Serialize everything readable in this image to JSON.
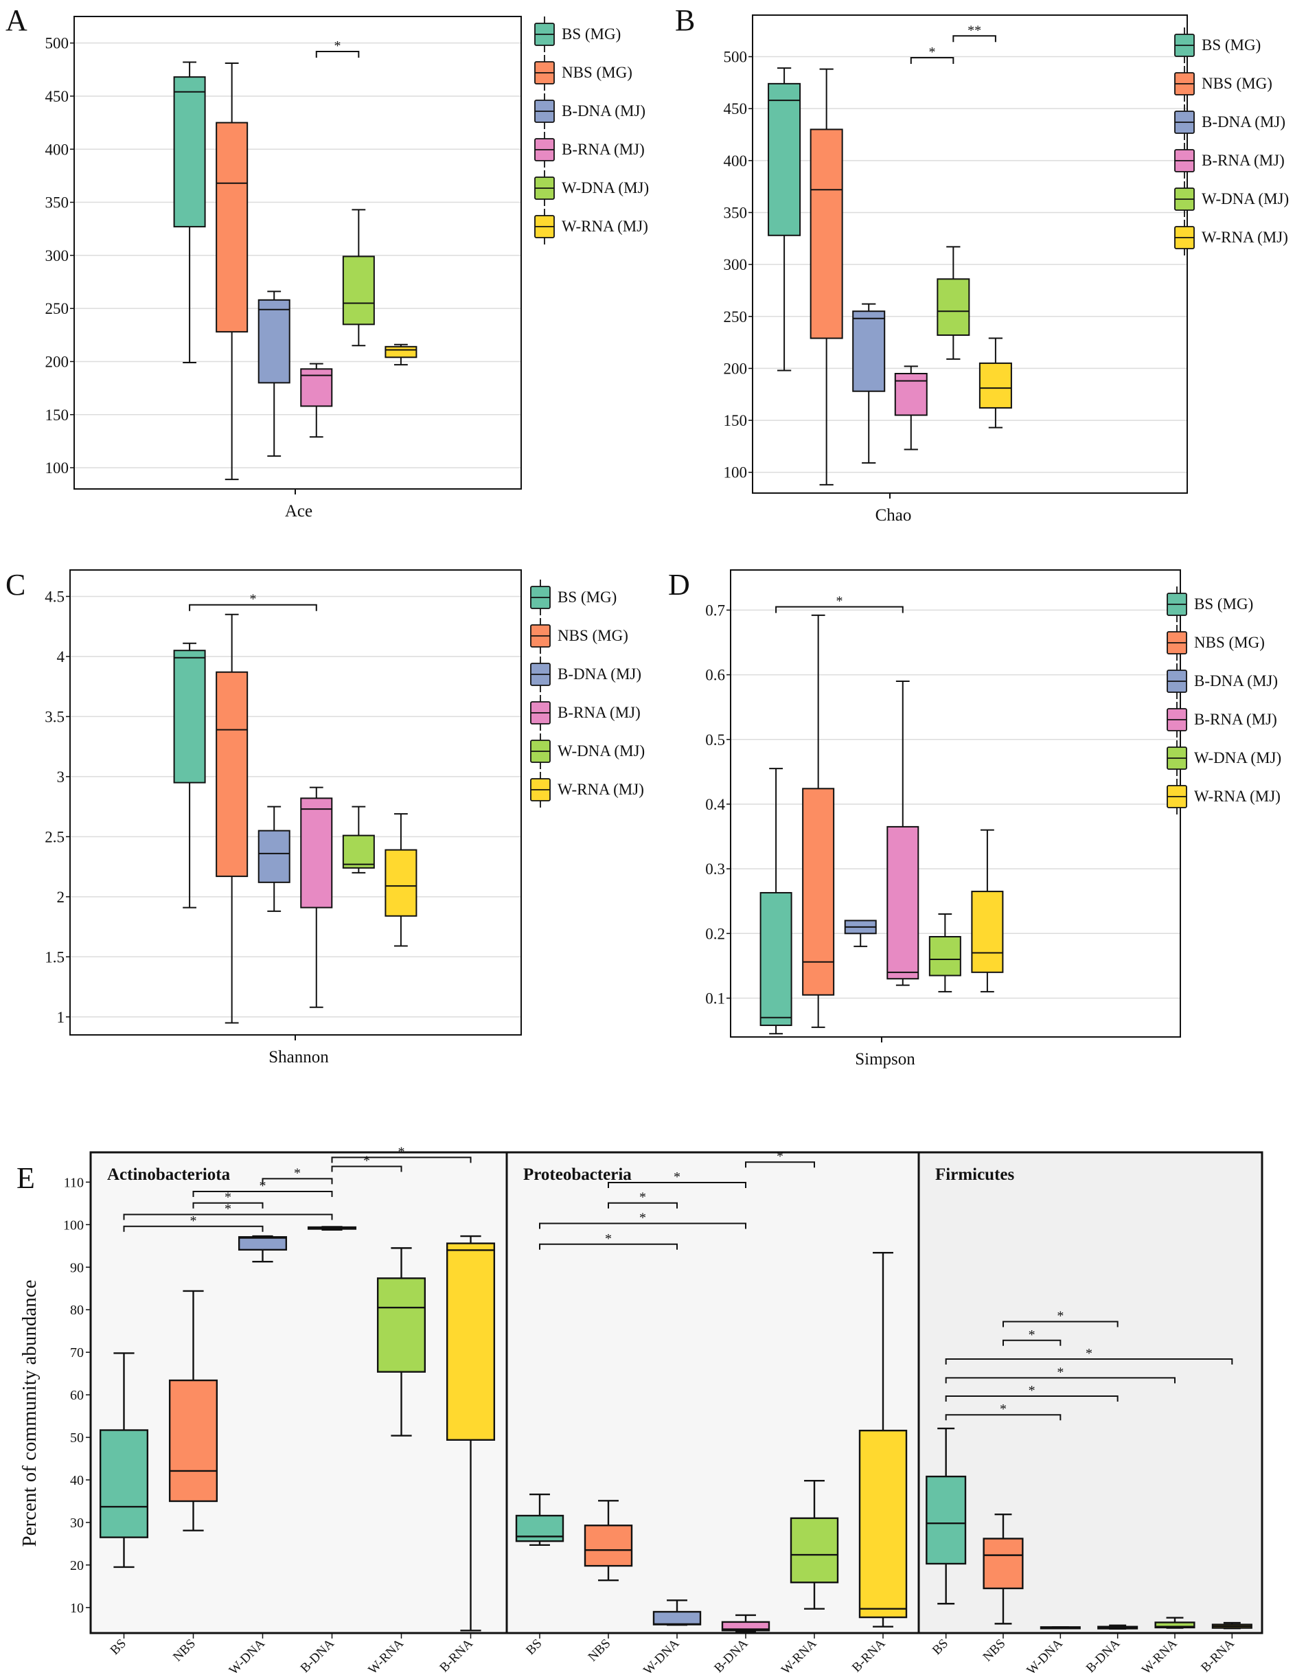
{
  "groups": [
    {
      "key": "BS",
      "legend": "BS (MG)",
      "color": "#66c2a5"
    },
    {
      "key": "NBS",
      "legend": "NBS (MG)",
      "color": "#fc8d62"
    },
    {
      "key": "B-DNA",
      "legend": "B-DNA (MJ)",
      "color": "#8da0cb"
    },
    {
      "key": "B-RNA",
      "legend": "B-RNA (MJ)",
      "color": "#e78ac3"
    },
    {
      "key": "W-DNA",
      "legend": "W-DNA (MJ)",
      "color": "#a6d854"
    },
    {
      "key": "W-RNA",
      "legend": "W-RNA (MJ)",
      "color": "#ffd92f"
    }
  ],
  "chart_data": [
    {
      "id": "A",
      "panel_label": "A",
      "type": "box",
      "xlabel": "Ace",
      "ylabel": "",
      "ylim": [
        80,
        525
      ],
      "yticks": [
        100,
        150,
        200,
        250,
        300,
        350,
        400,
        450,
        500
      ],
      "grid": true,
      "legend_position": "right",
      "boxes": [
        {
          "group": "BS (MG)",
          "min": 199,
          "q1": 327,
          "median": 454,
          "q3": 468,
          "max": 482
        },
        {
          "group": "NBS (MG)",
          "min": 89,
          "q1": 228,
          "median": 368,
          "q3": 425,
          "max": 481
        },
        {
          "group": "B-DNA (MJ)",
          "min": 111,
          "q1": 180,
          "median": 249,
          "q3": 258,
          "max": 266
        },
        {
          "group": "B-RNA (MJ)",
          "min": 129,
          "q1": 158,
          "median": 187,
          "q3": 193,
          "max": 198
        },
        {
          "group": "W-DNA (MJ)",
          "min": 215,
          "q1": 235,
          "median": 255,
          "q3": 299,
          "max": 343
        },
        {
          "group": "W-RNA (MJ)",
          "min": 197,
          "q1": 204,
          "median": 211,
          "q3": 214,
          "max": 216
        }
      ],
      "significance": [
        {
          "from": 3,
          "to": 4,
          "label": "*",
          "y": 492
        }
      ]
    },
    {
      "id": "B",
      "panel_label": "B",
      "type": "box",
      "xlabel": "Chao",
      "ylabel": "",
      "ylim": [
        80,
        540
      ],
      "yticks": [
        100,
        150,
        200,
        250,
        300,
        350,
        400,
        450,
        500
      ],
      "grid": true,
      "legend_position": "right",
      "boxes": [
        {
          "group": "BS (MG)",
          "min": 198,
          "q1": 328,
          "median": 458,
          "q3": 474,
          "max": 489
        },
        {
          "group": "NBS (MG)",
          "min": 88,
          "q1": 229,
          "median": 372,
          "q3": 430,
          "max": 488
        },
        {
          "group": "B-DNA (MJ)",
          "min": 109,
          "q1": 178,
          "median": 248,
          "q3": 255,
          "max": 262
        },
        {
          "group": "B-RNA (MJ)",
          "min": 122,
          "q1": 155,
          "median": 188,
          "q3": 195,
          "max": 202
        },
        {
          "group": "W-DNA (MJ)",
          "min": 209,
          "q1": 232,
          "median": 255,
          "q3": 286,
          "max": 317
        },
        {
          "group": "W-RNA (MJ)",
          "min": 143,
          "q1": 162,
          "median": 181,
          "q3": 205,
          "max": 229
        }
      ],
      "significance": [
        {
          "from": 3,
          "to": 4,
          "label": "*",
          "y": 499
        },
        {
          "from": 4,
          "to": 5,
          "label": "**",
          "y": 520
        }
      ]
    },
    {
      "id": "C",
      "panel_label": "C",
      "type": "box",
      "xlabel": "Shannon",
      "ylabel": "",
      "ylim": [
        0.85,
        4.72
      ],
      "yticks": [
        1,
        1.5,
        2,
        2.5,
        3,
        3.5,
        4,
        4.5
      ],
      "grid": true,
      "legend_position": "right",
      "boxes": [
        {
          "group": "BS (MG)",
          "min": 1.91,
          "q1": 2.95,
          "median": 3.99,
          "q3": 4.05,
          "max": 4.11
        },
        {
          "group": "NBS (MG)",
          "min": 0.95,
          "q1": 2.17,
          "median": 3.39,
          "q3": 3.87,
          "max": 4.35
        },
        {
          "group": "B-DNA (MJ)",
          "min": 1.88,
          "q1": 2.12,
          "median": 2.36,
          "q3": 2.55,
          "max": 2.75
        },
        {
          "group": "B-RNA (MJ)",
          "min": 1.08,
          "q1": 1.91,
          "median": 2.73,
          "q3": 2.82,
          "max": 2.91
        },
        {
          "group": "W-DNA (MJ)",
          "min": 2.2,
          "q1": 2.24,
          "median": 2.27,
          "q3": 2.51,
          "max": 2.75
        },
        {
          "group": "W-RNA (MJ)",
          "min": 1.59,
          "q1": 1.84,
          "median": 2.09,
          "q3": 2.39,
          "max": 2.69
        }
      ],
      "significance": [
        {
          "from": 0,
          "to": 3,
          "label": "*",
          "y": 4.43
        }
      ]
    },
    {
      "id": "D",
      "panel_label": "D",
      "type": "box",
      "xlabel": "Simpson",
      "ylabel": "",
      "ylim": [
        0.04,
        0.762
      ],
      "yticks": [
        0.1,
        0.2,
        0.3,
        0.4,
        0.5,
        0.6,
        0.7
      ],
      "grid": true,
      "legend_position": "right",
      "boxes": [
        {
          "group": "BS (MG)",
          "min": 0.045,
          "q1": 0.058,
          "median": 0.07,
          "q3": 0.263,
          "max": 0.455
        },
        {
          "group": "NBS (MG)",
          "min": 0.055,
          "q1": 0.105,
          "median": 0.156,
          "q3": 0.424,
          "max": 0.692
        },
        {
          "group": "B-DNA (MJ)",
          "min": 0.18,
          "q1": 0.2,
          "median": 0.21,
          "q3": 0.22,
          "max": 0.22
        },
        {
          "group": "B-RNA (MJ)",
          "min": 0.12,
          "q1": 0.13,
          "median": 0.14,
          "q3": 0.365,
          "max": 0.59
        },
        {
          "group": "W-DNA (MJ)",
          "min": 0.11,
          "q1": 0.135,
          "median": 0.16,
          "q3": 0.195,
          "max": 0.23
        },
        {
          "group": "W-RNA (MJ)",
          "min": 0.11,
          "q1": 0.14,
          "median": 0.17,
          "q3": 0.265,
          "max": 0.36
        }
      ],
      "significance": [
        {
          "from": 0,
          "to": 3,
          "label": "*",
          "y": 0.705
        }
      ]
    },
    {
      "id": "E",
      "panel_label": "E",
      "type": "box",
      "ylabel": "Percent of community abundance",
      "ylim": [
        4,
        117
      ],
      "yticks": [
        10,
        20,
        30,
        40,
        50,
        60,
        70,
        80,
        90,
        100,
        110
      ],
      "grid": false,
      "categories": [
        "BS",
        "NBS",
        "W-DNA",
        "B-DNA",
        "W-RNA",
        "B-RNA"
      ],
      "category_colors": [
        "#66c2a5",
        "#fc8d62",
        "#8da0cb",
        "#e78ac3",
        "#a6d854",
        "#ffd92f"
      ],
      "facets": [
        {
          "title": "Actinobacteriota",
          "background": "#f7f7f7",
          "boxes": [
            {
              "min": 19.5,
              "q1": 26.5,
              "median": 33.7,
              "q3": 51.7,
              "max": 69.8
            },
            {
              "min": 28.1,
              "q1": 35.0,
              "median": 42.1,
              "q3": 63.4,
              "max": 84.4
            },
            {
              "min": 91.3,
              "q1": 94.1,
              "median": 96.9,
              "q3": 97.1,
              "max": 97.3
            },
            {
              "min": 98.8,
              "q1": 99.0,
              "median": 99.2,
              "q3": 99.4,
              "max": 99.5
            },
            {
              "min": 50.4,
              "q1": 65.4,
              "median": 80.5,
              "q3": 87.4,
              "max": 94.5
            },
            {
              "min": 4.6,
              "q1": 49.4,
              "median": 94.0,
              "q3": 95.6,
              "max": 97.3
            }
          ],
          "significance": [
            {
              "from": 0,
              "to": 2,
              "label": "*",
              "y": 99.6
            },
            {
              "from": 0,
              "to": 3,
              "label": "*",
              "y": 102.4
            },
            {
              "from": 1,
              "to": 2,
              "label": "*",
              "y": 105.1
            },
            {
              "from": 1,
              "to": 3,
              "label": "*",
              "y": 107.8
            },
            {
              "from": 2,
              "to": 3,
              "label": "*",
              "y": 110.8
            },
            {
              "from": 3,
              "to": 4,
              "label": "*",
              "y": 113.7
            },
            {
              "from": 3,
              "to": 5,
              "label": "*",
              "y": 115.8
            }
          ]
        },
        {
          "title": "Proteobacteria",
          "background": "#f6f6f6",
          "boxes": [
            {
              "min": 24.7,
              "q1": 25.6,
              "median": 26.7,
              "q3": 31.6,
              "max": 36.6
            },
            {
              "min": 16.4,
              "q1": 19.8,
              "median": 23.5,
              "q3": 29.3,
              "max": 35.1
            },
            {
              "min": 5.9,
              "q1": 6.0,
              "median": 6.1,
              "q3": 9.0,
              "max": 11.7
            },
            {
              "min": 4.3,
              "q1": 4.6,
              "median": 4.9,
              "q3": 6.6,
              "max": 8.2
            },
            {
              "min": 9.7,
              "q1": 15.9,
              "median": 22.4,
              "q3": 31.0,
              "max": 39.8
            },
            {
              "min": 5.5,
              "q1": 7.7,
              "median": 9.7,
              "q3": 51.6,
              "max": 93.4
            }
          ],
          "significance": [
            {
              "from": 0,
              "to": 2,
              "label": "*",
              "y": 95.4
            },
            {
              "from": 0,
              "to": 3,
              "label": "*",
              "y": 100.3
            },
            {
              "from": 1,
              "to": 2,
              "label": "*",
              "y": 105.1
            },
            {
              "from": 1,
              "to": 3,
              "label": "*",
              "y": 109.9
            },
            {
              "from": 3,
              "to": 4,
              "label": "*",
              "y": 114.7
            }
          ]
        },
        {
          "title": "Firmicutes",
          "background": "#f0f0f0",
          "boxes": [
            {
              "min": 10.9,
              "q1": 20.3,
              "median": 29.8,
              "q3": 40.8,
              "max": 52.1
            },
            {
              "min": 6.2,
              "q1": 14.5,
              "median": 22.3,
              "q3": 26.2,
              "max": 31.9
            },
            {
              "min": 5.3,
              "q1": 5.3,
              "median": 5.35,
              "q3": 5.4,
              "max": 5.4
            },
            {
              "min": 5.0,
              "q1": 5.05,
              "median": 5.3,
              "q3": 5.5,
              "max": 5.8
            },
            {
              "min": 5.2,
              "q1": 5.3,
              "median": 5.5,
              "q3": 6.5,
              "max": 7.6
            },
            {
              "min": 5.1,
              "q1": 5.2,
              "median": 5.6,
              "q3": 6.0,
              "max": 6.4
            }
          ],
          "significance": [
            {
              "from": 0,
              "to": 2,
              "label": "*",
              "y": 55.3
            },
            {
              "from": 0,
              "to": 3,
              "label": "*",
              "y": 59.7
            },
            {
              "from": 0,
              "to": 4,
              "label": "*",
              "y": 64.0
            },
            {
              "from": 0,
              "to": 5,
              "label": "*",
              "y": 68.4
            },
            {
              "from": 1,
              "to": 2,
              "label": "*",
              "y": 72.8
            },
            {
              "from": 1,
              "to": 3,
              "label": "*",
              "y": 77.2
            }
          ]
        }
      ]
    }
  ]
}
